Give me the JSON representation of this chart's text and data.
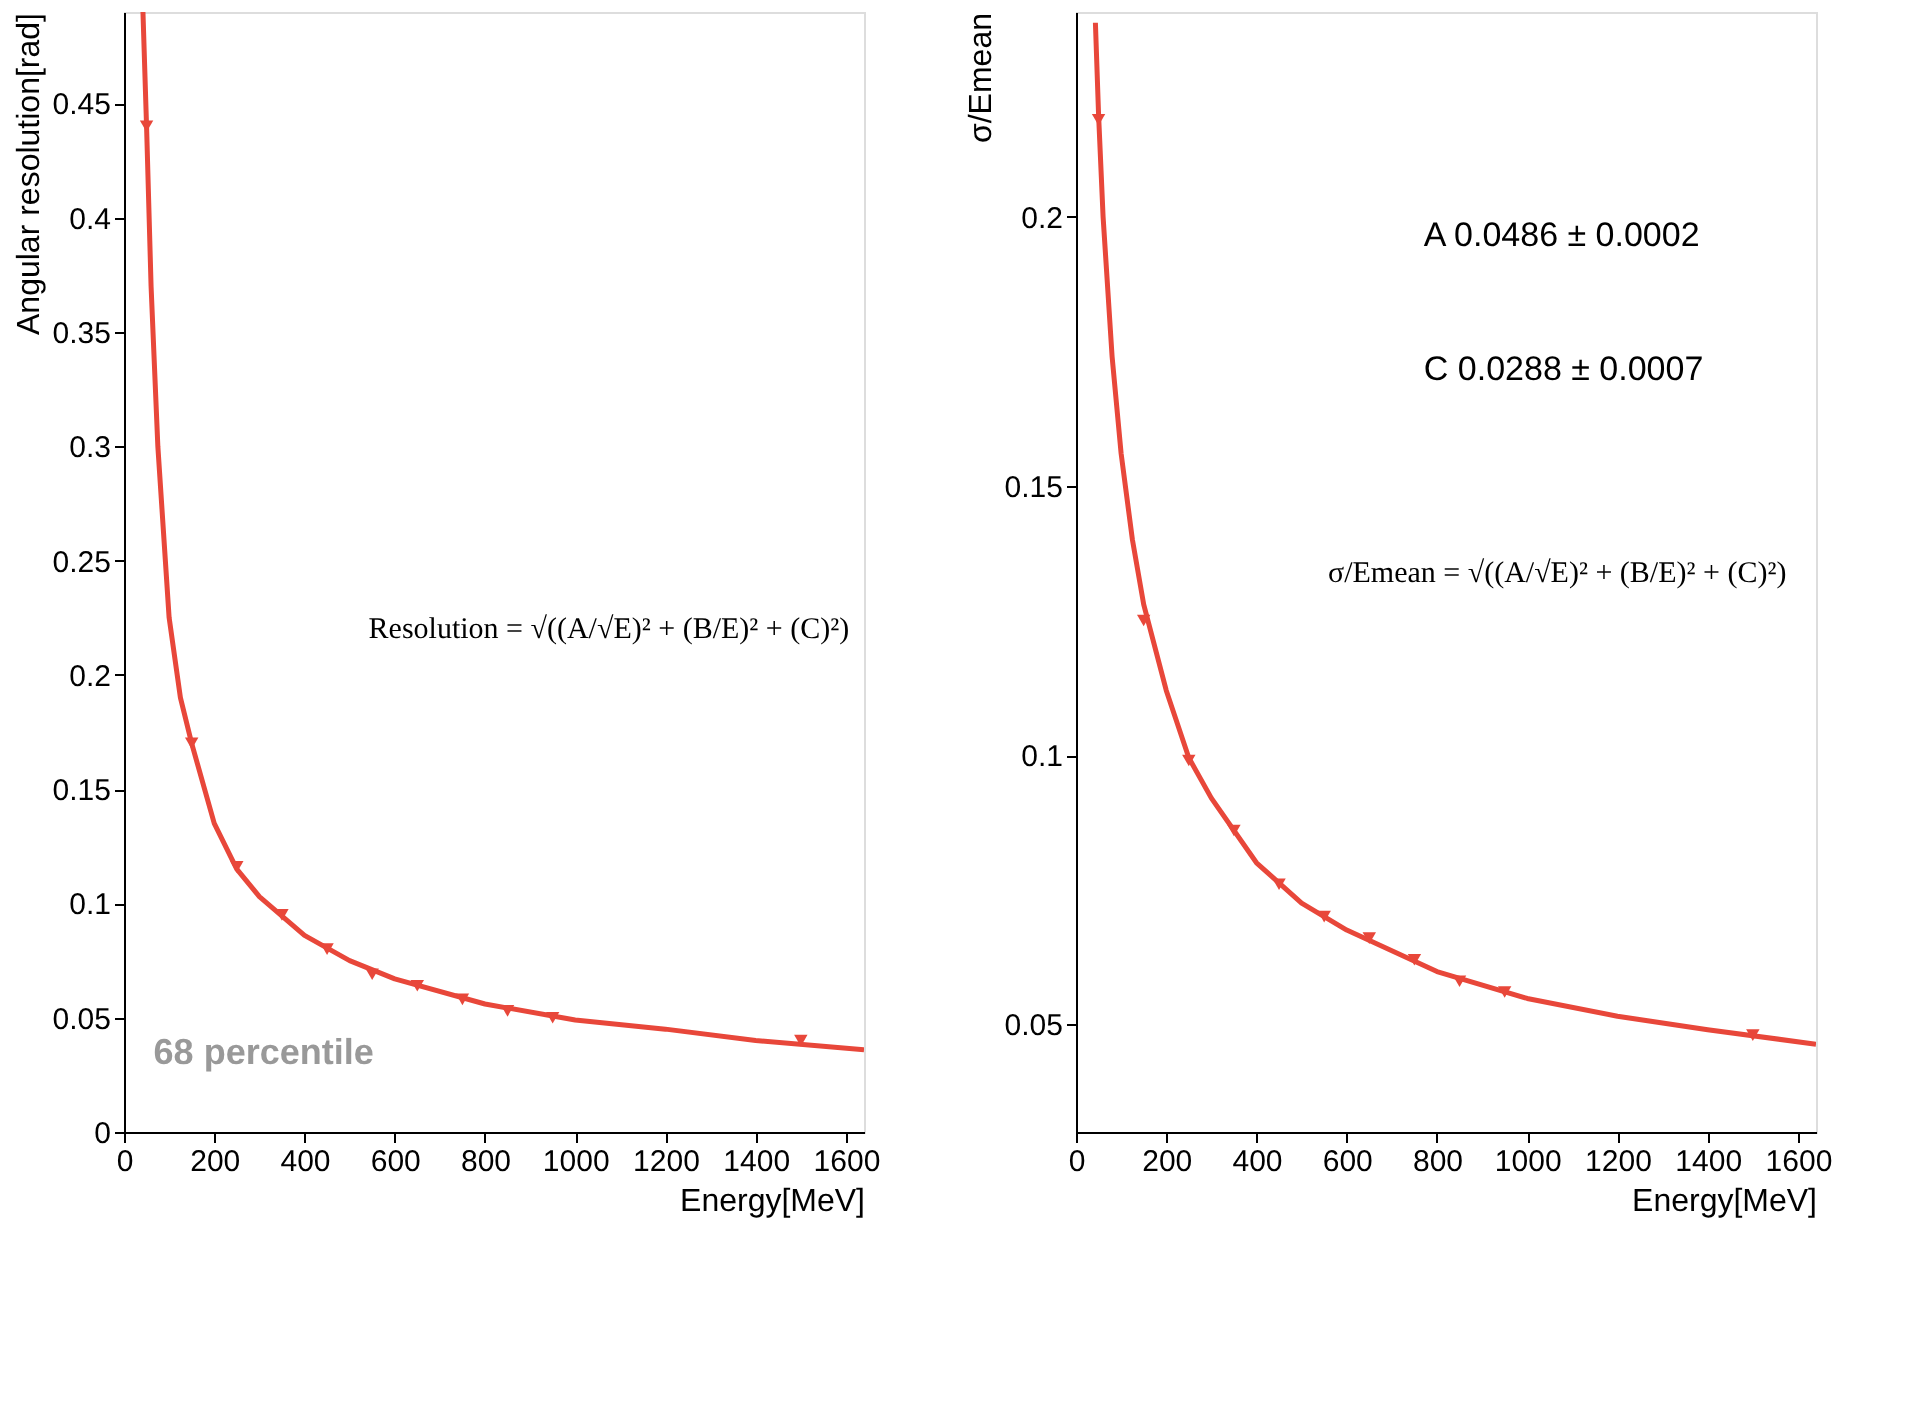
{
  "chart_data": [
    {
      "type": "line",
      "ylabel": "σ/Emean",
      "xlabel": "Energy[MeV]",
      "xlim": [
        0,
        1640
      ],
      "ylim": [
        0.03,
        0.238
      ],
      "xticks": [
        0,
        200,
        400,
        600,
        800,
        1000,
        1200,
        1400,
        1600
      ],
      "yticks": [
        0.05,
        0.1,
        0.15,
        0.2
      ],
      "grid": false,
      "series": [
        {
          "marker": "none",
          "color": "#e8473a",
          "x": [
            43,
            50,
            60,
            80,
            100,
            125,
            150,
            200,
            250,
            300,
            400,
            500,
            600,
            800,
            1000,
            1200,
            1400,
            1640
          ],
          "values": [
            0.236,
            0.219,
            0.2,
            0.174,
            0.156,
            0.14,
            0.128,
            0.112,
            0.0995,
            0.092,
            0.08,
            0.0725,
            0.0675,
            0.0598,
            0.0548,
            0.0515,
            0.049,
            0.0463
          ]
        },
        {
          "type": "scatter",
          "marker": "triangle",
          "color": "#e8473a",
          "x": [
            50,
            150,
            250,
            350,
            450,
            550,
            650,
            750,
            850,
            950,
            1500
          ],
          "values": [
            0.218,
            0.125,
            0.099,
            0.086,
            0.076,
            0.07,
            0.066,
            0.062,
            0.058,
            0.056,
            0.048
          ]
        }
      ],
      "annotations": [
        "A   0.0486 ± 0.0002",
        "C   0.0288 ± 0.0007",
        "σ/Emean = √((A/√E)² + (B/E)² + (C)²)"
      ]
    },
    {
      "type": "line",
      "ylabel": "Angular resolution[rad]",
      "xlabel": "Energy[MeV]",
      "xlim": [
        0,
        1640
      ],
      "ylim": [
        0,
        0.49
      ],
      "xticks": [
        0,
        200,
        400,
        600,
        800,
        1000,
        1200,
        1400,
        1600
      ],
      "yticks": [
        0,
        0.05,
        0.1,
        0.15,
        0.2,
        0.25,
        0.3,
        0.35,
        0.4,
        0.45
      ],
      "grid": false,
      "series": [
        {
          "marker": "none",
          "color": "#e8473a",
          "x": [
            42,
            50,
            60,
            75,
            100,
            125,
            150,
            200,
            250,
            300,
            400,
            500,
            600,
            800,
            1000,
            1200,
            1400,
            1640
          ],
          "values": [
            0.49,
            0.44,
            0.37,
            0.3,
            0.225,
            0.19,
            0.17,
            0.135,
            0.115,
            0.103,
            0.086,
            0.075,
            0.067,
            0.056,
            0.049,
            0.045,
            0.04,
            0.036
          ]
        },
        {
          "type": "scatter",
          "marker": "triangle",
          "color": "#e8473a",
          "x": [
            50,
            150,
            250,
            350,
            450,
            550,
            650,
            750,
            850,
            950,
            1500
          ],
          "values": [
            0.44,
            0.17,
            0.116,
            0.095,
            0.08,
            0.069,
            0.064,
            0.058,
            0.053,
            0.05,
            0.04
          ]
        }
      ],
      "annotations": [
        "Resolution = √((A/√E)² + (B/E)² + (C)²)",
        "68 percentile"
      ]
    }
  ]
}
